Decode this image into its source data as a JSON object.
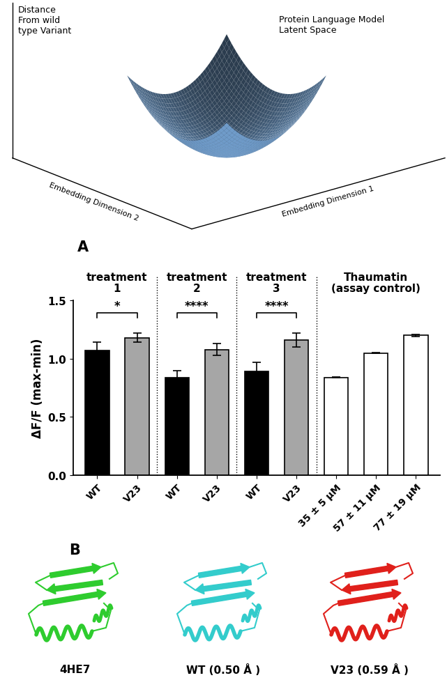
{
  "diagram": {
    "title": "Protein Language Model\nLatent Space",
    "z_axis_label": "Distance\nFrom wild\ntype Variant",
    "x_axis_label": "Embedding Dimension 1",
    "y_axis_label": "Embedding Dimension 2"
  },
  "chart_data": {
    "type": "bar",
    "panel": "A",
    "ylabel": "ΔF/F (max-min)",
    "ylim": [
      0,
      1.5
    ],
    "yticks": [
      {
        "value": 0,
        "label": "0.0"
      },
      {
        "value": 0.5,
        "label": "0.5"
      },
      {
        "value": 1.0,
        "label": "1.0"
      },
      {
        "value": 1.5,
        "label": "1.5"
      }
    ],
    "groups": [
      {
        "label": "treatment\n1",
        "significance": "*",
        "categories": [
          "WT",
          "V23"
        ],
        "values": [
          1.07,
          1.18
        ],
        "errors": [
          0.07,
          0.04
        ],
        "colors": [
          "#000000",
          "#a6a6a6"
        ]
      },
      {
        "label": "treatment\n2",
        "significance": "****",
        "categories": [
          "WT",
          "V23"
        ],
        "values": [
          0.84,
          1.08
        ],
        "errors": [
          0.06,
          0.05
        ],
        "colors": [
          "#000000",
          "#a6a6a6"
        ]
      },
      {
        "label": "treatment\n3",
        "significance": "****",
        "categories": [
          "WT",
          "V23"
        ],
        "values": [
          0.89,
          1.16
        ],
        "errors": [
          0.08,
          0.06
        ],
        "colors": [
          "#000000",
          "#a6a6a6"
        ]
      },
      {
        "label": "Thaumatin\n(assay control)",
        "categories": [
          "35 ± 5 µM",
          "57 ± 11 µM",
          "77 ± 19 µM"
        ],
        "values": [
          0.84,
          1.05,
          1.2
        ],
        "errors": [
          0.005,
          0.005,
          0.01
        ],
        "colors": [
          "#ffffff",
          "#ffffff",
          "#ffffff"
        ]
      }
    ]
  },
  "panel_b": {
    "panel": "B",
    "structures": [
      {
        "label": "4HE7",
        "color": "#2ecc2e"
      },
      {
        "label": "WT (0.50 Å )",
        "color": "#33cccc"
      },
      {
        "label": "V23 (0.59 Å )",
        "color": "#e0201b"
      }
    ]
  }
}
